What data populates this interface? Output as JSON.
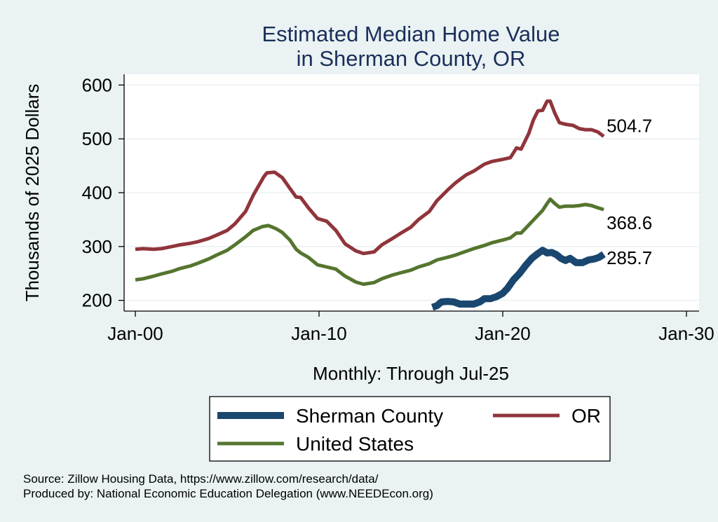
{
  "chart_data": {
    "type": "line",
    "title": [
      "Estimated Median Home Value",
      "in Sherman County, OR"
    ],
    "ylabel": "Thousands of 2025 Dollars",
    "xlabel": "Monthly: Through Jul-25",
    "x_axis": {
      "type": "date",
      "range": [
        "2000-01",
        "2030-01"
      ],
      "ticks": [
        "Jan-00",
        "Jan-10",
        "Jan-20",
        "Jan-30"
      ]
    },
    "y_axis": {
      "range": [
        180,
        620
      ],
      "ticks": [
        200,
        300,
        400,
        500,
        600
      ]
    },
    "grid": "horizontal",
    "legend_position": "bottom",
    "series": [
      {
        "name": "Sherman County",
        "color": "#1a476f",
        "end_label": "285.7",
        "points": [
          [
            "2016-03",
            187
          ],
          [
            "2016-06",
            190
          ],
          [
            "2016-09",
            197
          ],
          [
            "2017-01",
            198
          ],
          [
            "2017-05",
            197
          ],
          [
            "2017-09",
            193
          ],
          [
            "2018-01",
            193
          ],
          [
            "2018-06",
            193
          ],
          [
            "2018-10",
            197
          ],
          [
            "2019-01",
            203
          ],
          [
            "2019-05",
            203
          ],
          [
            "2019-09",
            207
          ],
          [
            "2020-01",
            213
          ],
          [
            "2020-04",
            222
          ],
          [
            "2020-08",
            238
          ],
          [
            "2020-12",
            250
          ],
          [
            "2021-04",
            265
          ],
          [
            "2021-08",
            278
          ],
          [
            "2021-12",
            287
          ],
          [
            "2022-03",
            293
          ],
          [
            "2022-06",
            288
          ],
          [
            "2022-09",
            289
          ],
          [
            "2022-12",
            285
          ],
          [
            "2023-03",
            278
          ],
          [
            "2023-06",
            274
          ],
          [
            "2023-09",
            278
          ],
          [
            "2024-01",
            270
          ],
          [
            "2024-05",
            270
          ],
          [
            "2024-09",
            275
          ],
          [
            "2025-01",
            277
          ],
          [
            "2025-04",
            280
          ],
          [
            "2025-07",
            285.7
          ]
        ]
      },
      {
        "name": "OR",
        "color": "#90353b",
        "end_label": "504.7",
        "points": [
          [
            "2000-01",
            295
          ],
          [
            "2000-06",
            296
          ],
          [
            "2001-01",
            295
          ],
          [
            "2001-06",
            296
          ],
          [
            "2002-01",
            300
          ],
          [
            "2002-06",
            303
          ],
          [
            "2003-01",
            306
          ],
          [
            "2003-06",
            309
          ],
          [
            "2004-01",
            315
          ],
          [
            "2004-06",
            321
          ],
          [
            "2005-01",
            330
          ],
          [
            "2005-06",
            342
          ],
          [
            "2006-01",
            365
          ],
          [
            "2006-06",
            395
          ],
          [
            "2007-01",
            430
          ],
          [
            "2007-03",
            437
          ],
          [
            "2007-08",
            438
          ],
          [
            "2008-01",
            428
          ],
          [
            "2008-06",
            408
          ],
          [
            "2008-10",
            392
          ],
          [
            "2009-01",
            391
          ],
          [
            "2009-06",
            372
          ],
          [
            "2009-12",
            352
          ],
          [
            "2010-06",
            347
          ],
          [
            "2010-12",
            330
          ],
          [
            "2011-06",
            305
          ],
          [
            "2012-01",
            292
          ],
          [
            "2012-06",
            287
          ],
          [
            "2013-01",
            290
          ],
          [
            "2013-06",
            303
          ],
          [
            "2014-01",
            315
          ],
          [
            "2014-06",
            324
          ],
          [
            "2015-01",
            336
          ],
          [
            "2015-06",
            350
          ],
          [
            "2016-01",
            365
          ],
          [
            "2016-06",
            385
          ],
          [
            "2017-01",
            405
          ],
          [
            "2017-06",
            418
          ],
          [
            "2018-01",
            433
          ],
          [
            "2018-06",
            440
          ],
          [
            "2019-01",
            453
          ],
          [
            "2019-06",
            458
          ],
          [
            "2020-01",
            462
          ],
          [
            "2020-06",
            465
          ],
          [
            "2020-10",
            483
          ],
          [
            "2021-01",
            481
          ],
          [
            "2021-06",
            510
          ],
          [
            "2021-09",
            535
          ],
          [
            "2021-12",
            552
          ],
          [
            "2022-03",
            553
          ],
          [
            "2022-06",
            570
          ],
          [
            "2022-08",
            570
          ],
          [
            "2022-11",
            548
          ],
          [
            "2023-02",
            530
          ],
          [
            "2023-06",
            527
          ],
          [
            "2023-11",
            525
          ],
          [
            "2024-03",
            519
          ],
          [
            "2024-07",
            517
          ],
          [
            "2024-11",
            517
          ],
          [
            "2025-03",
            513
          ],
          [
            "2025-07",
            504.7
          ]
        ]
      },
      {
        "name": "United States",
        "color": "#55752f",
        "end_label": "368.6",
        "points": [
          [
            "2000-01",
            238
          ],
          [
            "2000-06",
            240
          ],
          [
            "2001-01",
            245
          ],
          [
            "2001-06",
            249
          ],
          [
            "2002-01",
            254
          ],
          [
            "2002-06",
            259
          ],
          [
            "2003-01",
            264
          ],
          [
            "2003-06",
            269
          ],
          [
            "2004-01",
            277
          ],
          [
            "2004-06",
            284
          ],
          [
            "2005-01",
            293
          ],
          [
            "2005-06",
            303
          ],
          [
            "2006-01",
            318
          ],
          [
            "2006-06",
            330
          ],
          [
            "2006-12",
            337
          ],
          [
            "2007-04",
            339
          ],
          [
            "2007-09",
            333
          ],
          [
            "2008-01",
            326
          ],
          [
            "2008-06",
            312
          ],
          [
            "2008-10",
            295
          ],
          [
            "2009-01",
            288
          ],
          [
            "2009-06",
            280
          ],
          [
            "2009-12",
            266
          ],
          [
            "2010-06",
            262
          ],
          [
            "2010-12",
            258
          ],
          [
            "2011-06",
            245
          ],
          [
            "2012-01",
            234
          ],
          [
            "2012-06",
            230
          ],
          [
            "2013-01",
            233
          ],
          [
            "2013-06",
            240
          ],
          [
            "2014-01",
            247
          ],
          [
            "2014-06",
            251
          ],
          [
            "2015-01",
            256
          ],
          [
            "2015-06",
            262
          ],
          [
            "2016-01",
            268
          ],
          [
            "2016-06",
            275
          ],
          [
            "2017-01",
            280
          ],
          [
            "2017-06",
            284
          ],
          [
            "2018-01",
            291
          ],
          [
            "2018-06",
            296
          ],
          [
            "2019-01",
            302
          ],
          [
            "2019-06",
            307
          ],
          [
            "2020-01",
            312
          ],
          [
            "2020-06",
            316
          ],
          [
            "2020-10",
            325
          ],
          [
            "2021-01",
            325
          ],
          [
            "2021-06",
            340
          ],
          [
            "2021-12",
            358
          ],
          [
            "2022-03",
            367
          ],
          [
            "2022-06",
            380
          ],
          [
            "2022-08",
            388
          ],
          [
            "2022-11",
            380
          ],
          [
            "2023-02",
            373
          ],
          [
            "2023-06",
            375
          ],
          [
            "2023-11",
            375
          ],
          [
            "2024-03",
            376
          ],
          [
            "2024-07",
            378
          ],
          [
            "2024-11",
            376
          ],
          [
            "2025-03",
            372
          ],
          [
            "2025-07",
            368.6
          ]
        ]
      }
    ],
    "source_lines": [
      "Source: Zillow Housing Data, https://www.zillow.com/research/data/",
      "Produced by: National Economic Education Delegation (www.NEEDEcon.org)"
    ]
  }
}
